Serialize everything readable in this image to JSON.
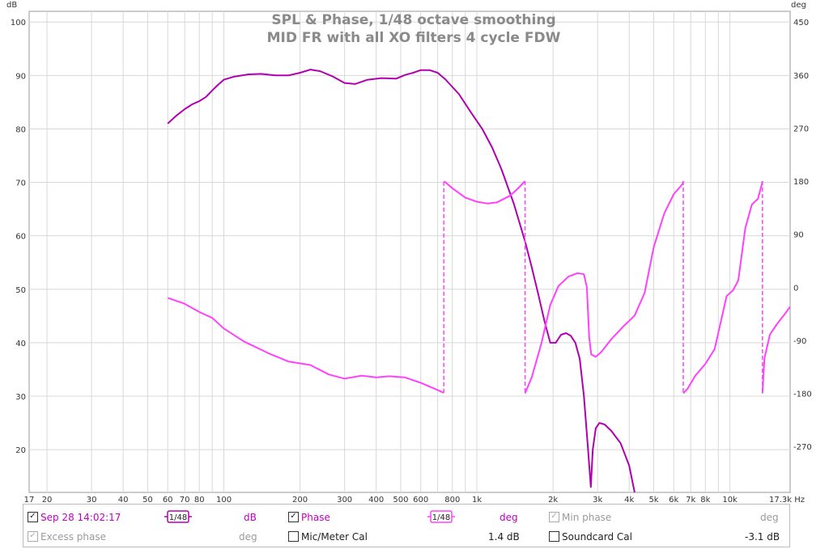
{
  "chart_data": {
    "type": "line",
    "title": "SPL & Phase, 1/48 octave smoothing",
    "subtitle": "MID FR with all XO filters 4 cycle FDW",
    "x_scale": "log",
    "xlim": [
      17,
      17300
    ],
    "x_ticks": [
      {
        "v": 17,
        "label": "17"
      },
      {
        "v": 20,
        "label": "20"
      },
      {
        "v": 30,
        "label": "30"
      },
      {
        "v": 40,
        "label": "40"
      },
      {
        "v": 50,
        "label": "50"
      },
      {
        "v": 60,
        "label": "60"
      },
      {
        "v": 70,
        "label": "70"
      },
      {
        "v": 80,
        "label": "80"
      },
      {
        "v": 100,
        "label": "100"
      },
      {
        "v": 200,
        "label": "200"
      },
      {
        "v": 300,
        "label": "300"
      },
      {
        "v": 400,
        "label": "400"
      },
      {
        "v": 500,
        "label": "500"
      },
      {
        "v": 600,
        "label": "600"
      },
      {
        "v": 800,
        "label": "800"
      },
      {
        "v": 1000,
        "label": "1k"
      },
      {
        "v": 2000,
        "label": "2k"
      },
      {
        "v": 3000,
        "label": "3k"
      },
      {
        "v": 4000,
        "label": "4k"
      },
      {
        "v": 5000,
        "label": "5k"
      },
      {
        "v": 6000,
        "label": "6k"
      },
      {
        "v": 7000,
        "label": "7k"
      },
      {
        "v": 8000,
        "label": "8k"
      },
      {
        "v": 10000,
        "label": "10k"
      },
      {
        "v": 17300,
        "label": "17.3k Hz"
      }
    ],
    "left_axis": {
      "unit": "dB",
      "range": [
        12,
        102
      ],
      "ticks": [
        20,
        30,
        40,
        50,
        60,
        70,
        80,
        90,
        100
      ]
    },
    "right_axis": {
      "unit": "deg",
      "range": [
        -348,
        468
      ],
      "ticks": [
        -270,
        -180,
        -90,
        0,
        90,
        180,
        270,
        360,
        450
      ]
    },
    "grid": true,
    "series": [
      {
        "name": "Sep 28 14:02:17",
        "axis": "left",
        "color": "#b000b0",
        "points": [
          [
            60,
            81
          ],
          [
            65,
            82.5
          ],
          [
            70,
            83.7
          ],
          [
            75,
            84.6
          ],
          [
            80,
            85.2
          ],
          [
            85,
            86
          ],
          [
            90,
            87.2
          ],
          [
            95,
            88.3
          ],
          [
            100,
            89.2
          ],
          [
            110,
            89.8
          ],
          [
            125,
            90.2
          ],
          [
            140,
            90.3
          ],
          [
            160,
            90
          ],
          [
            180,
            90
          ],
          [
            200,
            90.5
          ],
          [
            220,
            91.1
          ],
          [
            240,
            90.8
          ],
          [
            270,
            89.8
          ],
          [
            300,
            88.6
          ],
          [
            330,
            88.4
          ],
          [
            370,
            89.2
          ],
          [
            420,
            89.5
          ],
          [
            480,
            89.4
          ],
          [
            520,
            90.1
          ],
          [
            560,
            90.5
          ],
          [
            600,
            91
          ],
          [
            650,
            91
          ],
          [
            700,
            90.5
          ],
          [
            750,
            89.3
          ],
          [
            850,
            86.5
          ],
          [
            950,
            83
          ],
          [
            1050,
            80
          ],
          [
            1150,
            76.5
          ],
          [
            1250,
            72.5
          ],
          [
            1400,
            66
          ],
          [
            1550,
            59
          ],
          [
            1650,
            54
          ],
          [
            1750,
            49
          ],
          [
            1850,
            44
          ],
          [
            1950,
            40
          ],
          [
            2050,
            40
          ],
          [
            2150,
            41.5
          ],
          [
            2250,
            41.8
          ],
          [
            2350,
            41.3
          ],
          [
            2450,
            40
          ],
          [
            2550,
            37
          ],
          [
            2650,
            30
          ],
          [
            2750,
            20
          ],
          [
            2820,
            13
          ],
          [
            2870,
            20
          ],
          [
            2950,
            24
          ],
          [
            3050,
            25
          ],
          [
            3200,
            24.7
          ],
          [
            3400,
            23.5
          ],
          [
            3700,
            21.2
          ],
          [
            4000,
            17
          ],
          [
            4200,
            12
          ]
        ]
      },
      {
        "name": "Phase",
        "axis": "right",
        "color": "#ff40ff",
        "wrap_dashed": true,
        "points": [
          [
            60,
            -18
          ],
          [
            70,
            -28
          ],
          [
            80,
            -42
          ],
          [
            90,
            -52
          ],
          [
            100,
            -70
          ],
          [
            120,
            -92
          ],
          [
            150,
            -112
          ],
          [
            180,
            -126
          ],
          [
            220,
            -132
          ],
          [
            260,
            -148
          ],
          [
            300,
            -155
          ],
          [
            350,
            -150
          ],
          [
            400,
            -153
          ],
          [
            450,
            -151
          ],
          [
            520,
            -153
          ],
          [
            600,
            -162
          ],
          [
            680,
            -172
          ],
          [
            740,
            -179
          ],
          [
            741,
            180
          ],
          [
            800,
            168
          ],
          [
            900,
            152
          ],
          [
            1000,
            145
          ],
          [
            1100,
            142
          ],
          [
            1200,
            144
          ],
          [
            1350,
            155
          ],
          [
            1450,
            167
          ],
          [
            1550,
            180
          ],
          [
            1551,
            -180
          ],
          [
            1650,
            -152
          ],
          [
            1800,
            -95
          ],
          [
            1950,
            -30
          ],
          [
            2100,
            2
          ],
          [
            2300,
            18
          ],
          [
            2500,
            24
          ],
          [
            2650,
            22
          ],
          [
            2720,
            0
          ],
          [
            2780,
            -85
          ],
          [
            2830,
            -114
          ],
          [
            2950,
            -118
          ],
          [
            3100,
            -110
          ],
          [
            3400,
            -88
          ],
          [
            3800,
            -66
          ],
          [
            4200,
            -48
          ],
          [
            4600,
            -10
          ],
          [
            5000,
            68
          ],
          [
            5500,
            125
          ],
          [
            6000,
            158
          ],
          [
            6500,
            175
          ],
          [
            6540,
            180
          ],
          [
            6541,
            -180
          ],
          [
            6800,
            -172
          ],
          [
            7300,
            -150
          ],
          [
            8000,
            -130
          ],
          [
            8700,
            -105
          ],
          [
            9300,
            -50
          ],
          [
            9700,
            -15
          ],
          [
            10300,
            -5
          ],
          [
            10800,
            12
          ],
          [
            11500,
            100
          ],
          [
            12200,
            140
          ],
          [
            12900,
            150
          ],
          [
            13400,
            176
          ],
          [
            13450,
            180
          ],
          [
            13451,
            -180
          ],
          [
            13700,
            -120
          ],
          [
            14400,
            -80
          ],
          [
            15500,
            -60
          ],
          [
            16500,
            -45
          ],
          [
            17300,
            -33
          ]
        ]
      }
    ]
  },
  "axes": {
    "left_unit": "dB",
    "right_unit": "deg"
  },
  "legend": {
    "row1": {
      "measurement_label": "Sep 28 14:02:17",
      "measurement_smoothing": "1/48",
      "measurement_unit": "dB",
      "phase_label": "Phase",
      "phase_smoothing": "1/48",
      "phase_unit": "deg",
      "minphase_label": "Min phase",
      "minphase_unit": "deg"
    },
    "row2": {
      "excess_label": "Excess phase",
      "excess_unit": "deg",
      "micmeter_label": "Mic/Meter Cal",
      "micmeter_value": "1.4 dB",
      "soundcard_label": "Soundcard Cal",
      "soundcard_value": "-3.1 dB"
    }
  },
  "colors": {
    "spl": "#b000b0",
    "phase": "#ff40ff",
    "grid": "#d8d8d8",
    "title": "#8a8a8a"
  }
}
